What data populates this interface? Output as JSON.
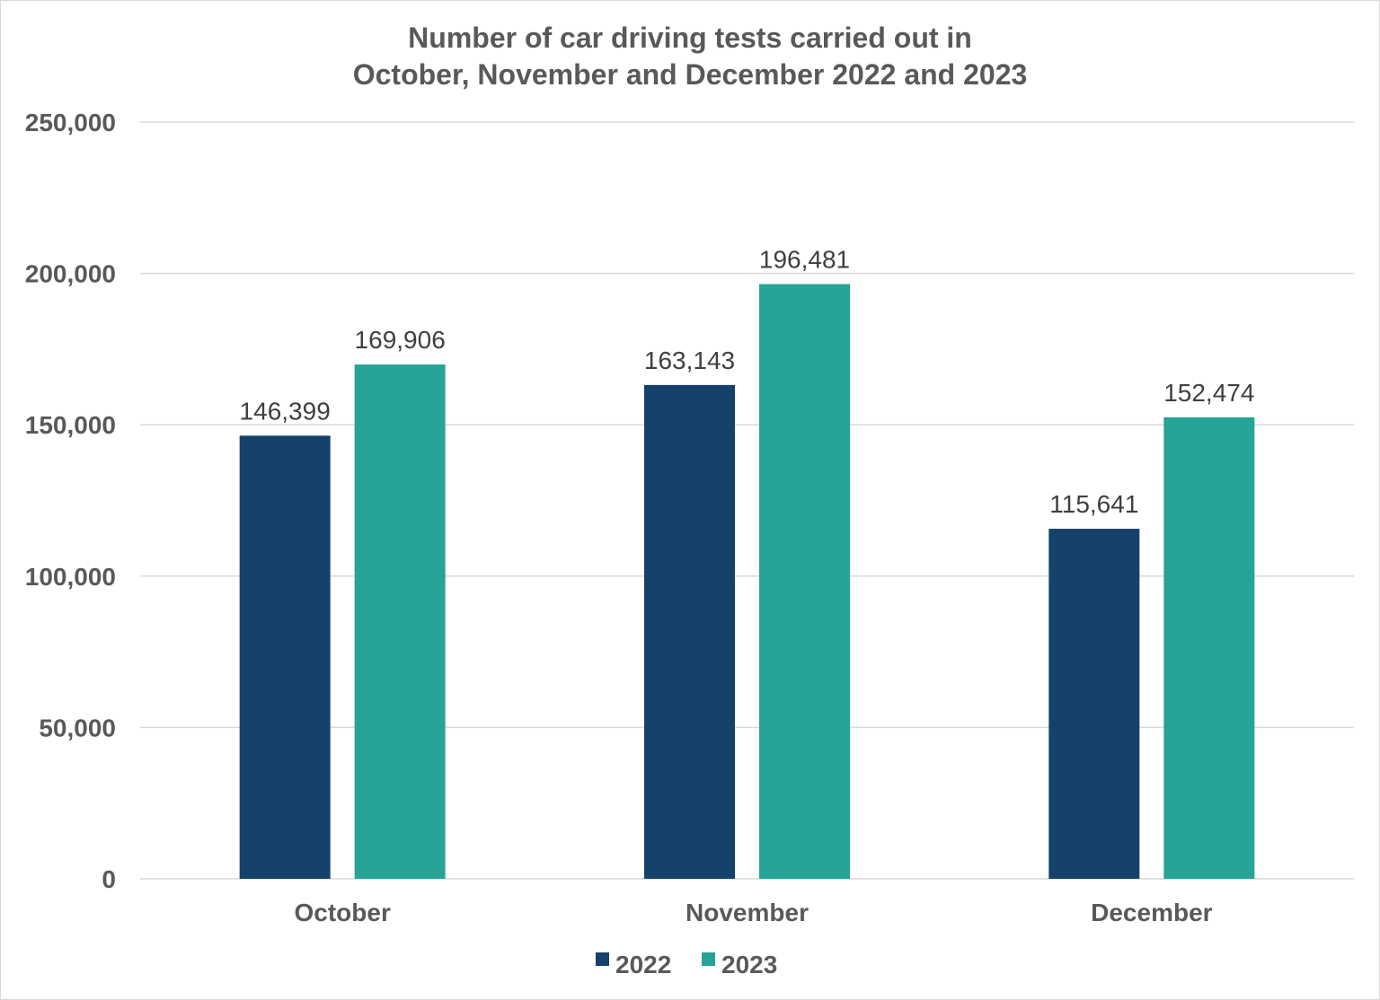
{
  "chart_data": {
    "type": "bar",
    "title_lines": [
      "Number of car driving tests carried out in",
      "October, November and December 2022 and 2023"
    ],
    "categories": [
      "October",
      "November",
      "December"
    ],
    "series": [
      {
        "name": "2022",
        "color": "#14426b",
        "values": [
          146399,
          163143,
          115641
        ],
        "labels": [
          "146,399",
          "163,143",
          "115,641"
        ]
      },
      {
        "name": "2023",
        "color": "#27a398",
        "values": [
          169906,
          196481,
          152474
        ],
        "labels": [
          "169,906",
          "196,481",
          "152,474"
        ]
      }
    ],
    "ylim": [
      0,
      250000
    ],
    "yticks": [
      0,
      50000,
      100000,
      150000,
      200000,
      250000
    ],
    "ytick_labels": [
      "0",
      "50,000",
      "100,000",
      "150,000",
      "200,000",
      "250,000"
    ],
    "grid": true,
    "legend_position": "bottom"
  }
}
